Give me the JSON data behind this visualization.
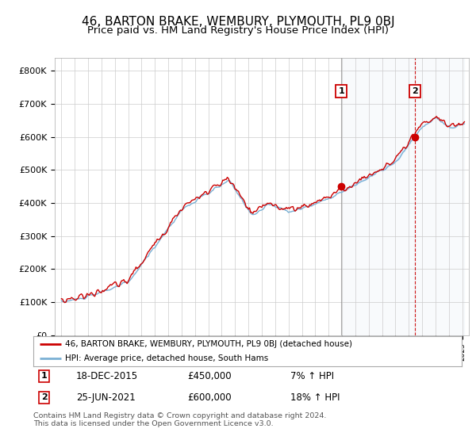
{
  "title": "46, BARTON BRAKE, WEMBURY, PLYMOUTH, PL9 0BJ",
  "subtitle": "Price paid vs. HM Land Registry's House Price Index (HPI)",
  "title_fontsize": 11,
  "subtitle_fontsize": 9.5,
  "ylabel_ticks": [
    "£0",
    "£100K",
    "£200K",
    "£300K",
    "£400K",
    "£500K",
    "£600K",
    "£700K",
    "£800K"
  ],
  "ytick_values": [
    0,
    100000,
    200000,
    300000,
    400000,
    500000,
    600000,
    700000,
    800000
  ],
  "ylim": [
    0,
    840000
  ],
  "sale1_date": "18-DEC-2015",
  "sale1_price": 450000,
  "sale1_hpi": "7% ↑ HPI",
  "sale1_label": "1",
  "sale1_year": 2015.96,
  "sale2_date": "25-JUN-2021",
  "sale2_price": 600000,
  "sale2_hpi": "18% ↑ HPI",
  "sale2_label": "2",
  "sale2_year": 2021.48,
  "line1_color": "#cc0000",
  "line2_color": "#7ab0d4",
  "shade_color": "#ddeeff",
  "marker_color": "#cc0000",
  "legend_line1": "46, BARTON BRAKE, WEMBURY, PLYMOUTH, PL9 0BJ (detached house)",
  "legend_line2": "HPI: Average price, detached house, South Hams",
  "footer": "Contains HM Land Registry data © Crown copyright and database right 2024.\nThis data is licensed under the Open Government Licence v3.0.",
  "background_color": "#ffffff",
  "grid_color": "#cccccc",
  "annotation_box_color": "#cc0000",
  "vline1_color": "#888888",
  "vline2_color": "#cc0000"
}
